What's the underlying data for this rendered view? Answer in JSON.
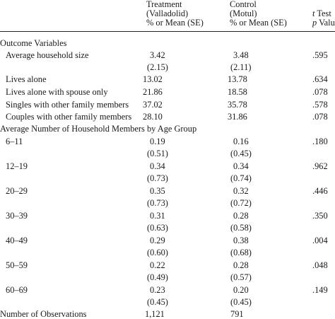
{
  "header": {
    "treatment": [
      "Treatment",
      "(Valladolid)",
      "% or Mean (SE)"
    ],
    "control": [
      "Control",
      "(Motul)",
      "% or Mean (SE)"
    ],
    "ttest": {
      "t_italic": "t",
      "test": " Test",
      "p_italic": "p",
      "value": " Value"
    }
  },
  "sections": {
    "outcome": "Outcome Variables",
    "age_group": "Average Number of Household Members by Age Group"
  },
  "outcome_rows": [
    {
      "label": "Average household size",
      "treatment": "3.42",
      "treatment_se": "(2.15)",
      "control": "3.48",
      "control_se": "(2.11)",
      "p": ".595"
    },
    {
      "label": "Lives alone",
      "treatment": "13.02",
      "control": "13.78",
      "p": ".634"
    },
    {
      "label": "Lives alone with spouse only",
      "treatment": "21.86",
      "control": "18.58",
      "p": ".078"
    },
    {
      "label": "Singles with other family members",
      "treatment": "37.02",
      "control": "35.78",
      "p": ".578"
    },
    {
      "label": "Couples with other family members",
      "treatment": "28.10",
      "control": "31.86",
      "p": ".078"
    }
  ],
  "age_rows": [
    {
      "label": "6–11",
      "treatment": "0.19",
      "treatment_se": "(0.51)",
      "control": "0.16",
      "control_se": "(0.45)",
      "p": ".180"
    },
    {
      "label": "12–19",
      "treatment": "0.34",
      "treatment_se": "(0.73)",
      "control": "0.34",
      "control_se": "(0.74)",
      "p": ".962"
    },
    {
      "label": "20–29",
      "treatment": "0.35",
      "treatment_se": "(0.73)",
      "control": "0.32",
      "control_se": "(0.72)",
      "p": ".446"
    },
    {
      "label": "30–39",
      "treatment": "0.31",
      "treatment_se": "(0.63)",
      "control": "0.28",
      "control_se": "(0.58)",
      "p": ".350"
    },
    {
      "label": "40–49",
      "treatment": "0.29",
      "treatment_se": "(0.60)",
      "control": "0.38",
      "control_se": "(0.68)",
      "p": ".004"
    },
    {
      "label": "50–59",
      "treatment": "0.22",
      "treatment_se": "(0.49)",
      "control": "0.28",
      "control_se": "(0.57)",
      "p": ".048"
    },
    {
      "label": "60–69",
      "treatment": "0.23",
      "treatment_se": "(0.45)",
      "control": "0.20",
      "control_se": "(0.45)",
      "p": ".149"
    }
  ],
  "observations": {
    "label": "Number of Observations",
    "treatment": "1,121",
    "control": "791"
  }
}
